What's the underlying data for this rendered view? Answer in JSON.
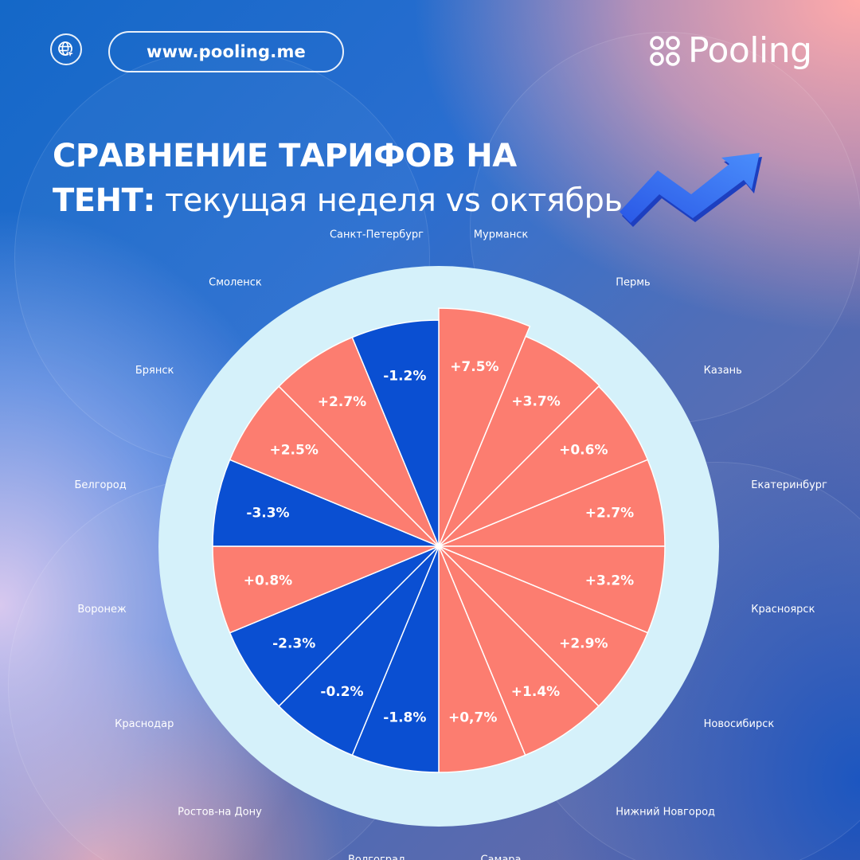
{
  "header": {
    "url": "www.pooling.me",
    "brand": "Pooling"
  },
  "title": {
    "bold": "СРАВНЕНИЕ ТАРИФОВ НА ТЕНТ:",
    "regular": " текущая неделя vs октябрь"
  },
  "colors": {
    "increase": "#fc7d70",
    "decrease": "#0a4fd2",
    "ring": "#d5f1fa"
  },
  "icons": [
    "globe-cursor-icon",
    "pooling-logo-icon",
    "trend-arrow-icon"
  ],
  "chart_data": {
    "type": "pie",
    "title": "СРАВНЕНИЕ ТАРИФОВ НА ТЕНТ: текущая неделя vs октябрь",
    "unit": "%",
    "slices": [
      {
        "city": "Мурманск",
        "label": "+7.5%",
        "value": 7.5
      },
      {
        "city": "Пермь",
        "label": "+3.7%",
        "value": 3.7
      },
      {
        "city": "Казань",
        "label": "+0.6%",
        "value": 0.6
      },
      {
        "city": "Екатеринбург",
        "label": "+2.7%",
        "value": 2.7
      },
      {
        "city": "Красноярск",
        "label": "+3.2%",
        "value": 3.2
      },
      {
        "city": "Новосибирск",
        "label": "+2.9%",
        "value": 2.9
      },
      {
        "city": "Нижний Новгород",
        "label": "+1.4%",
        "value": 1.4
      },
      {
        "city": "Самара",
        "label": "+0,7%",
        "value": 0.7
      },
      {
        "city": "Волгоград",
        "label": "-1.8%",
        "value": -1.8
      },
      {
        "city": "Ростов-на Дону",
        "label": "-0.2%",
        "value": -0.2
      },
      {
        "city": "Краснодар",
        "label": "-2.3%",
        "value": -2.3
      },
      {
        "city": "Воронеж",
        "label": "+0.8%",
        "value": 0.8
      },
      {
        "city": "Белгород",
        "label": "-3.3%",
        "value": -3.3
      },
      {
        "city": "Брянск",
        "label": "+2.5%",
        "value": 2.5
      },
      {
        "city": "Смоленск",
        "label": "+2.7%",
        "value": 2.7
      },
      {
        "city": "Санкт-Петербург",
        "label": "-1.2%",
        "value": -1.2
      }
    ]
  }
}
